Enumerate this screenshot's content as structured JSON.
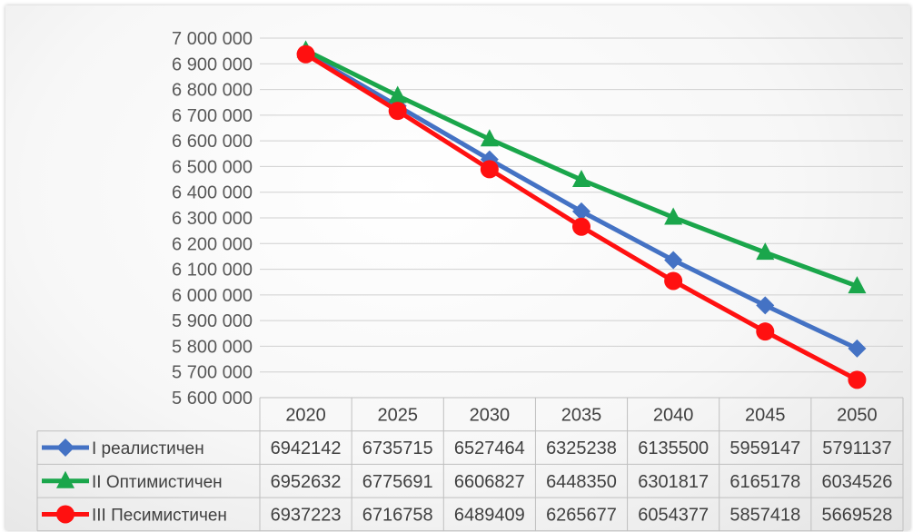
{
  "chart_data": {
    "type": "line",
    "title": "",
    "xlabel": "",
    "ylabel": "",
    "ylim": [
      5600000,
      7000000
    ],
    "ytick_step": 100000,
    "y_tick_labels": [
      "5 600 000",
      "5 700 000",
      "5 800 000",
      "5 900 000",
      "6 000 000",
      "6 100 000",
      "6 200 000",
      "6 300 000",
      "6 400 000",
      "6 500 000",
      "6 600 000",
      "6 700 000",
      "6 800 000",
      "6 900 000",
      "7 000 000"
    ],
    "categories": [
      "2020",
      "2025",
      "2030",
      "2035",
      "2040",
      "2045",
      "2050"
    ],
    "grid": true,
    "legend_placement": "data-table",
    "series": [
      {
        "name": "I реалистичен",
        "color": "#4472C4",
        "marker": "diamond",
        "values": [
          6942142,
          6735715,
          6527464,
          6325238,
          6135500,
          5959147,
          5791137
        ]
      },
      {
        "name": "II Оптимистичен",
        "color": "#1AA64B",
        "marker": "triangle",
        "values": [
          6952632,
          6775691,
          6606827,
          6448350,
          6301817,
          6165178,
          6034526
        ]
      },
      {
        "name": "III Песимистичен",
        "color": "#FF1010",
        "marker": "circle",
        "values": [
          6937223,
          6716758,
          6489409,
          6265677,
          6054377,
          5857418,
          5669528
        ]
      }
    ]
  }
}
